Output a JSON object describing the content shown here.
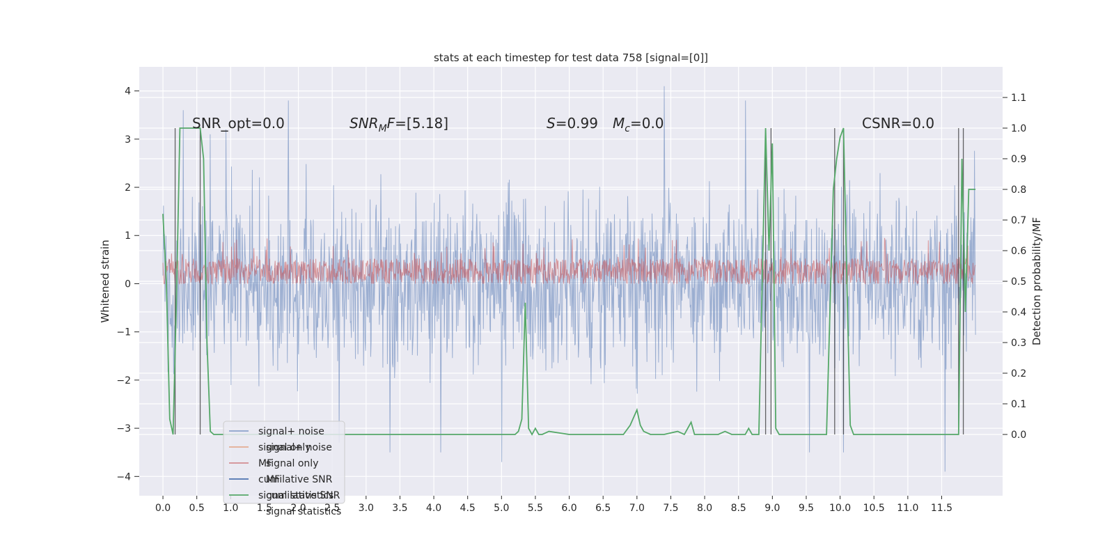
{
  "chart_data": {
    "type": "line",
    "title": "stats at each timestep for test data 758 [signal=[0]]",
    "xlabel": "",
    "ylabel_left": "Whitened strain",
    "ylabel_right": "Detection probability/MF",
    "xlim": [
      -0.35,
      12.4
    ],
    "ylim_left": [
      -4.4,
      4.5
    ],
    "ylim_right": [
      -0.2,
      1.2
    ],
    "x_ticks": [
      "0.0",
      "0.5",
      "1.0",
      "1.5",
      "2.0",
      "2.5",
      "3.0",
      "3.5",
      "4.0",
      "4.5",
      "5.0",
      "5.5",
      "6.0",
      "6.5",
      "7.0",
      "7.5",
      "8.0",
      "8.5",
      "9.0",
      "9.5",
      "10.0",
      "10.5",
      "11.0",
      "11.5"
    ],
    "y_ticks_left": [
      "4",
      "3",
      "2",
      "1",
      "0",
      "−1",
      "−2",
      "−3",
      "−4"
    ],
    "y_ticks_right": [
      "1.1",
      "1.0",
      "0.9",
      "0.8",
      "0.7",
      "0.6",
      "0.5",
      "0.4",
      "0.3",
      "0.2",
      "0.1",
      "0.0"
    ],
    "grid": true,
    "annotations": {
      "snr_opt": "SNR_opt=0.0",
      "snr_mf_sym": "SNR",
      "snr_mf_sub": "M",
      "snr_mf_f": "F",
      "snr_mf_val": "=[5.18]",
      "s_sym": "S",
      "s_val": "=0.99",
      "mc_sym": "M",
      "mc_sub": "c",
      "mc_val": "=0.0",
      "csnr": "CSNR=0.0"
    },
    "legend": {
      "placement": "lower-left",
      "items": [
        {
          "label": "signal+ noise",
          "color": "#4c72b0"
        },
        {
          "label": "signal only",
          "color": "#dd8452"
        },
        {
          "label": "MF",
          "color": "#c44e52"
        },
        {
          "label": "cumilative SNR",
          "color": "#4c72b0"
        },
        {
          "label": "signal statistics",
          "color": "#55a868"
        }
      ],
      "ghost_labels": [
        "signal+ noise",
        "signal only",
        "MF",
        "cumilative SNR",
        "signal statistics"
      ]
    },
    "series": [
      {
        "name": "signal+ noise",
        "axis": "left",
        "color": "#4c72b0",
        "description": "dense noise trace 0–12 s, roughly ±2 with spikes",
        "x_range": [
          0.0,
          12.0
        ],
        "spikes": [
          [
            0.3,
            3.6
          ],
          [
            0.7,
            3.1
          ],
          [
            1.85,
            3.8
          ],
          [
            2.6,
            -3.3
          ],
          [
            3.35,
            -3.5
          ],
          [
            4.1,
            -3.5
          ],
          [
            5.0,
            -3.7
          ],
          [
            7.4,
            4.1
          ],
          [
            8.6,
            3.8
          ],
          [
            9.55,
            -3.5
          ],
          [
            10.05,
            -3.5
          ],
          [
            11.55,
            -3.9
          ]
        ]
      },
      {
        "name": "MF",
        "axis": "left",
        "color": "#c44e52",
        "description": "dense band roughly 0.0–0.6"
      },
      {
        "name": "signal statistics",
        "axis": "right",
        "color": "#55a868",
        "x": [
          0.0,
          0.05,
          0.1,
          0.15,
          0.2,
          0.25,
          0.3,
          0.35,
          0.4,
          0.45,
          0.5,
          0.55,
          0.6,
          0.65,
          0.7,
          0.75,
          0.8,
          0.85,
          0.9,
          1.0,
          2.0,
          3.0,
          4.0,
          5.0,
          5.2,
          5.25,
          5.3,
          5.35,
          5.4,
          5.45,
          5.5,
          5.55,
          5.6,
          5.7,
          6.0,
          6.5,
          6.8,
          6.9,
          7.0,
          7.05,
          7.1,
          7.2,
          7.4,
          7.6,
          7.7,
          7.8,
          7.85,
          7.9,
          8.0,
          8.2,
          8.3,
          8.4,
          8.5,
          8.6,
          8.65,
          8.7,
          8.8,
          8.9,
          8.95,
          9.0,
          9.05,
          9.1,
          9.2,
          9.3,
          9.5,
          9.8,
          9.9,
          9.95,
          10.0,
          10.05,
          10.1,
          10.15,
          10.2,
          10.3,
          10.5,
          11.0,
          11.3,
          11.6,
          11.75,
          11.8,
          11.85,
          11.9,
          11.95,
          12.0
        ],
        "values": [
          0.72,
          0.5,
          0.05,
          0.0,
          0.45,
          1.0,
          1.0,
          1.0,
          1.0,
          1.0,
          1.0,
          1.0,
          0.9,
          0.3,
          0.01,
          0.0,
          0.0,
          0.0,
          0.0,
          0.0,
          0.0,
          0.0,
          0.0,
          0.0,
          0.0,
          0.01,
          0.05,
          0.43,
          0.02,
          0.0,
          0.02,
          0.0,
          0.0,
          0.01,
          0.0,
          0.0,
          0.0,
          0.03,
          0.08,
          0.03,
          0.01,
          0.0,
          0.0,
          0.01,
          0.0,
          0.04,
          0.0,
          0.0,
          0.0,
          0.0,
          0.01,
          0.0,
          0.0,
          0.0,
          0.02,
          0.0,
          0.0,
          1.0,
          0.6,
          0.95,
          0.02,
          0.0,
          0.0,
          0.0,
          0.0,
          0.0,
          0.8,
          0.9,
          0.97,
          1.0,
          0.5,
          0.03,
          0.0,
          0.0,
          0.0,
          0.0,
          0.0,
          0.0,
          0.0,
          0.9,
          0.4,
          0.8,
          0.8,
          0.8
        ]
      }
    ],
    "vertical_markers": [
      0.18,
      0.55,
      8.9,
      8.98,
      9.92,
      10.05,
      11.75,
      11.82
    ]
  }
}
